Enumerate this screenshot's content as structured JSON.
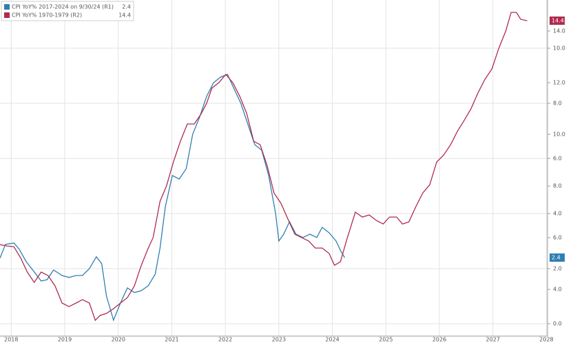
{
  "chart_data": {
    "type": "line",
    "xlim": [
      2018.29,
      2028.52
    ],
    "xticks": [
      {
        "value": 2018.5,
        "label": "2018"
      },
      {
        "value": 2019.5,
        "label": "2019"
      },
      {
        "value": 2020.5,
        "label": "2020"
      },
      {
        "value": 2021.5,
        "label": "2021"
      },
      {
        "value": 2022.5,
        "label": "2022"
      },
      {
        "value": 2023.5,
        "label": "2023"
      },
      {
        "value": 2024.5,
        "label": "2024"
      },
      {
        "value": 2025.5,
        "label": "2025"
      },
      {
        "value": 2026.5,
        "label": "2026"
      },
      {
        "value": 2027.5,
        "label": "2027"
      },
      {
        "value": 2028.5,
        "label": "2028"
      }
    ],
    "ylim": [
      -0.45,
      11.75
    ],
    "yticks": [
      {
        "value": 0,
        "label": "0.0"
      },
      {
        "value": 2,
        "label": "2.0"
      },
      {
        "value": 4,
        "label": "4.0"
      },
      {
        "value": 6,
        "label": "6.0"
      },
      {
        "value": 8,
        "label": "8.0"
      },
      {
        "value": 10,
        "label": "10.0"
      }
    ],
    "y2lim": [
      2.19,
      15.2
    ],
    "y2ticks": [
      {
        "value": 4,
        "label": "4.0"
      },
      {
        "value": 6,
        "label": "6.0"
      },
      {
        "value": 8,
        "label": "8.0"
      },
      {
        "value": 10,
        "label": "10.0"
      },
      {
        "value": 12,
        "label": "12.0"
      },
      {
        "value": 14,
        "label": "14.0"
      }
    ],
    "grid": true,
    "series": [
      {
        "name": "CPI YoY% 2017-2024 on 9/30/24 (R1)",
        "color": "#2f7fb2",
        "x": [
          2018.29,
          2018.39,
          2018.55,
          2018.65,
          2018.78,
          2018.91,
          2019.06,
          2019.17,
          2019.29,
          2019.45,
          2019.58,
          2019.71,
          2019.83,
          2019.96,
          2020.09,
          2020.19,
          2020.28,
          2020.41,
          2020.54,
          2020.67,
          2020.8,
          2020.93,
          2021.06,
          2021.19,
          2021.28,
          2021.38,
          2021.51,
          2021.64,
          2021.77,
          2021.89,
          2022.02,
          2022.15,
          2022.28,
          2022.41,
          2022.54,
          2022.67,
          2022.79,
          2022.92,
          2023.05,
          2023.18,
          2023.31,
          2023.44,
          2023.5,
          2023.59,
          2023.7,
          2023.82,
          2023.95,
          2024.08,
          2024.21,
          2024.31,
          2024.44,
          2024.57,
          2024.66,
          2024.73
        ],
        "values": [
          2.38,
          2.88,
          2.93,
          2.7,
          2.25,
          1.93,
          1.55,
          1.6,
          1.95,
          1.75,
          1.68,
          1.75,
          1.75,
          2.0,
          2.43,
          2.18,
          1.0,
          0.13,
          0.75,
          1.3,
          1.13,
          1.2,
          1.38,
          1.8,
          2.75,
          4.25,
          5.38,
          5.25,
          5.63,
          6.88,
          7.5,
          8.25,
          8.75,
          8.95,
          9.05,
          8.5,
          8.0,
          7.25,
          6.5,
          6.3,
          5.38,
          4.0,
          3.0,
          3.25,
          3.7,
          3.25,
          3.13,
          3.25,
          3.13,
          3.5,
          3.3,
          3.0,
          2.63,
          2.4
        ]
      },
      {
        "name": "CPI YoY% 1970-1979 (R2)",
        "color": "#b02a4e",
        "axis": "y2",
        "x": [
          2018.29,
          2018.42,
          2018.55,
          2018.68,
          2018.8,
          2018.93,
          2019.06,
          2019.19,
          2019.32,
          2019.45,
          2019.58,
          2019.71,
          2019.83,
          2019.96,
          2020.07,
          2020.16,
          2020.28,
          2020.41,
          2020.54,
          2020.67,
          2020.8,
          2020.93,
          2021.06,
          2021.15,
          2021.28,
          2021.4,
          2021.53,
          2021.66,
          2021.79,
          2021.92,
          2022.05,
          2022.15,
          2022.25,
          2022.38,
          2022.51,
          2022.64,
          2022.77,
          2022.9,
          2023.03,
          2023.15,
          2023.28,
          2023.41,
          2023.54,
          2023.67,
          2023.8,
          2023.93,
          2024.06,
          2024.18,
          2024.31,
          2024.44,
          2024.54,
          2024.65,
          2024.78,
          2024.93,
          2025.06,
          2025.19,
          2025.32,
          2025.45,
          2025.57,
          2025.7,
          2025.81,
          2025.93,
          2026.06,
          2026.19,
          2026.32,
          2026.45,
          2026.58,
          2026.71,
          2026.84,
          2026.96,
          2027.09,
          2027.22,
          2027.35,
          2027.48,
          2027.61,
          2027.74,
          2027.84,
          2027.94,
          2028.02,
          2028.14
        ],
        "values": [
          5.73,
          5.68,
          5.65,
          5.2,
          4.67,
          4.27,
          4.67,
          4.53,
          4.13,
          3.47,
          3.33,
          3.47,
          3.6,
          3.47,
          2.8,
          2.99,
          3.07,
          3.25,
          3.47,
          3.68,
          4.13,
          4.93,
          5.6,
          6.0,
          7.41,
          8.0,
          8.93,
          9.73,
          10.4,
          10.4,
          10.8,
          11.2,
          11.79,
          12.0,
          12.32,
          12.0,
          11.47,
          10.8,
          9.73,
          9.6,
          8.8,
          7.73,
          7.33,
          6.72,
          6.13,
          6.0,
          5.87,
          5.6,
          5.6,
          5.39,
          4.93,
          5.07,
          6.0,
          6.99,
          6.8,
          6.88,
          6.67,
          6.53,
          6.8,
          6.8,
          6.53,
          6.61,
          7.2,
          7.73,
          8.05,
          8.93,
          9.2,
          9.6,
          10.13,
          10.53,
          10.99,
          11.6,
          12.13,
          12.53,
          13.33,
          14.0,
          14.72,
          14.72,
          14.45,
          14.4
        ]
      }
    ]
  }
}
